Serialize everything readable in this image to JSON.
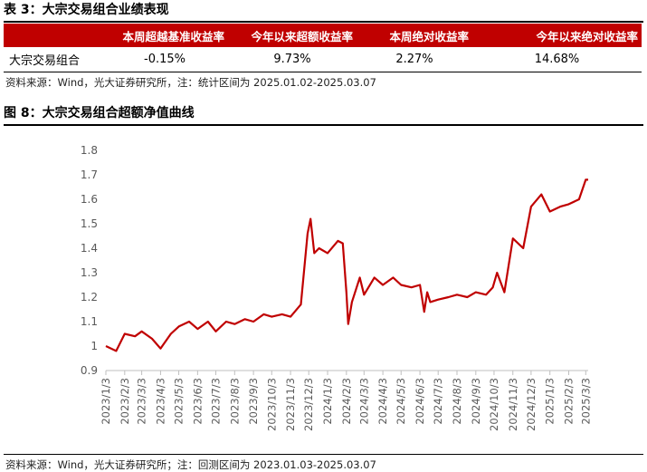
{
  "table": {
    "title": "表 3：大宗交易组合业绩表现",
    "headers": [
      "",
      "本周超越基准收益率",
      "今年以来超额收益率",
      "本周绝对收益率",
      "今年以来绝对收益率"
    ],
    "rows": [
      {
        "label": "大宗交易组合",
        "values": [
          "-0.15%",
          "9.73%",
          "2.27%",
          "14.68%"
        ]
      }
    ],
    "source": "资料来源：Wind，光大证券研究所，注：统计区间为 2025.01.02-2025.03.07"
  },
  "figure": {
    "title": "图 8：大宗交易组合超额净值曲线",
    "source": "资料来源：Wind，光大证券研究所；注：回测区间为 2023.01.03-2025.03.07"
  },
  "chart_data": {
    "type": "line",
    "title": "",
    "xlabel": "",
    "ylabel": "",
    "ylim": [
      0.9,
      1.8
    ],
    "yticks": [
      "0.9",
      "1",
      "1.1",
      "1.2",
      "1.3",
      "1.4",
      "1.5",
      "1.6",
      "1.7",
      "1.8"
    ],
    "xticks": [
      "2023/1/3",
      "2023/2/3",
      "2023/3/3",
      "2023/4/3",
      "2023/5/3",
      "2023/6/3",
      "2023/7/3",
      "2023/8/3",
      "2023/9/3",
      "2023/10/3",
      "2023/11/3",
      "2023/12/3",
      "2024/1/3",
      "2024/2/3",
      "2024/3/3",
      "2024/4/3",
      "2024/5/3",
      "2024/6/3",
      "2024/7/3",
      "2024/8/3",
      "2024/9/3",
      "2024/10/3",
      "2024/11/3",
      "2024/12/3",
      "2025/1/3",
      "2025/2/3",
      "2025/3/3"
    ],
    "grid": false,
    "line_color": "#c00000",
    "series": [
      {
        "x": [
          "2023/1/3",
          "2023/1/20",
          "2023/2/3",
          "2023/2/20",
          "2023/3/3",
          "2023/3/20",
          "2023/4/3",
          "2023/4/20",
          "2023/5/3",
          "2023/5/20",
          "2023/6/3",
          "2023/6/20",
          "2023/7/3",
          "2023/7/20",
          "2023/8/3",
          "2023/8/20",
          "2023/9/3",
          "2023/9/20",
          "2023/10/3",
          "2023/10/20",
          "2023/11/3",
          "2023/11/20",
          "2023/12/1",
          "2023/12/6",
          "2023/12/12",
          "2023/12/20",
          "2024/1/3",
          "2024/1/20",
          "2024/1/28",
          "2024/2/3",
          "2024/2/6",
          "2024/2/12",
          "2024/2/25",
          "2024/3/3",
          "2024/3/20",
          "2024/4/3",
          "2024/4/20",
          "2024/5/3",
          "2024/5/20",
          "2024/6/3",
          "2024/6/10",
          "2024/6/15",
          "2024/6/20",
          "2024/7/3",
          "2024/7/20",
          "2024/8/3",
          "2024/8/20",
          "2024/9/3",
          "2024/9/20",
          "2024/10/1",
          "2024/10/8",
          "2024/10/20",
          "2024/11/3",
          "2024/11/20",
          "2024/12/3",
          "2024/12/20",
          "2025/1/3",
          "2025/1/20",
          "2025/2/3",
          "2025/2/20",
          "2025/3/3",
          "2025/3/7"
        ],
        "values": [
          1.0,
          0.98,
          1.05,
          1.04,
          1.06,
          1.03,
          0.99,
          1.05,
          1.08,
          1.1,
          1.07,
          1.1,
          1.06,
          1.1,
          1.09,
          1.11,
          1.1,
          1.13,
          1.12,
          1.13,
          1.12,
          1.17,
          1.46,
          1.52,
          1.38,
          1.4,
          1.38,
          1.43,
          1.42,
          1.22,
          1.09,
          1.18,
          1.28,
          1.21,
          1.28,
          1.25,
          1.28,
          1.25,
          1.24,
          1.25,
          1.14,
          1.22,
          1.18,
          1.19,
          1.2,
          1.21,
          1.2,
          1.22,
          1.21,
          1.24,
          1.3,
          1.22,
          1.44,
          1.4,
          1.57,
          1.62,
          1.55,
          1.57,
          1.58,
          1.6,
          1.68,
          1.68
        ]
      }
    ]
  }
}
